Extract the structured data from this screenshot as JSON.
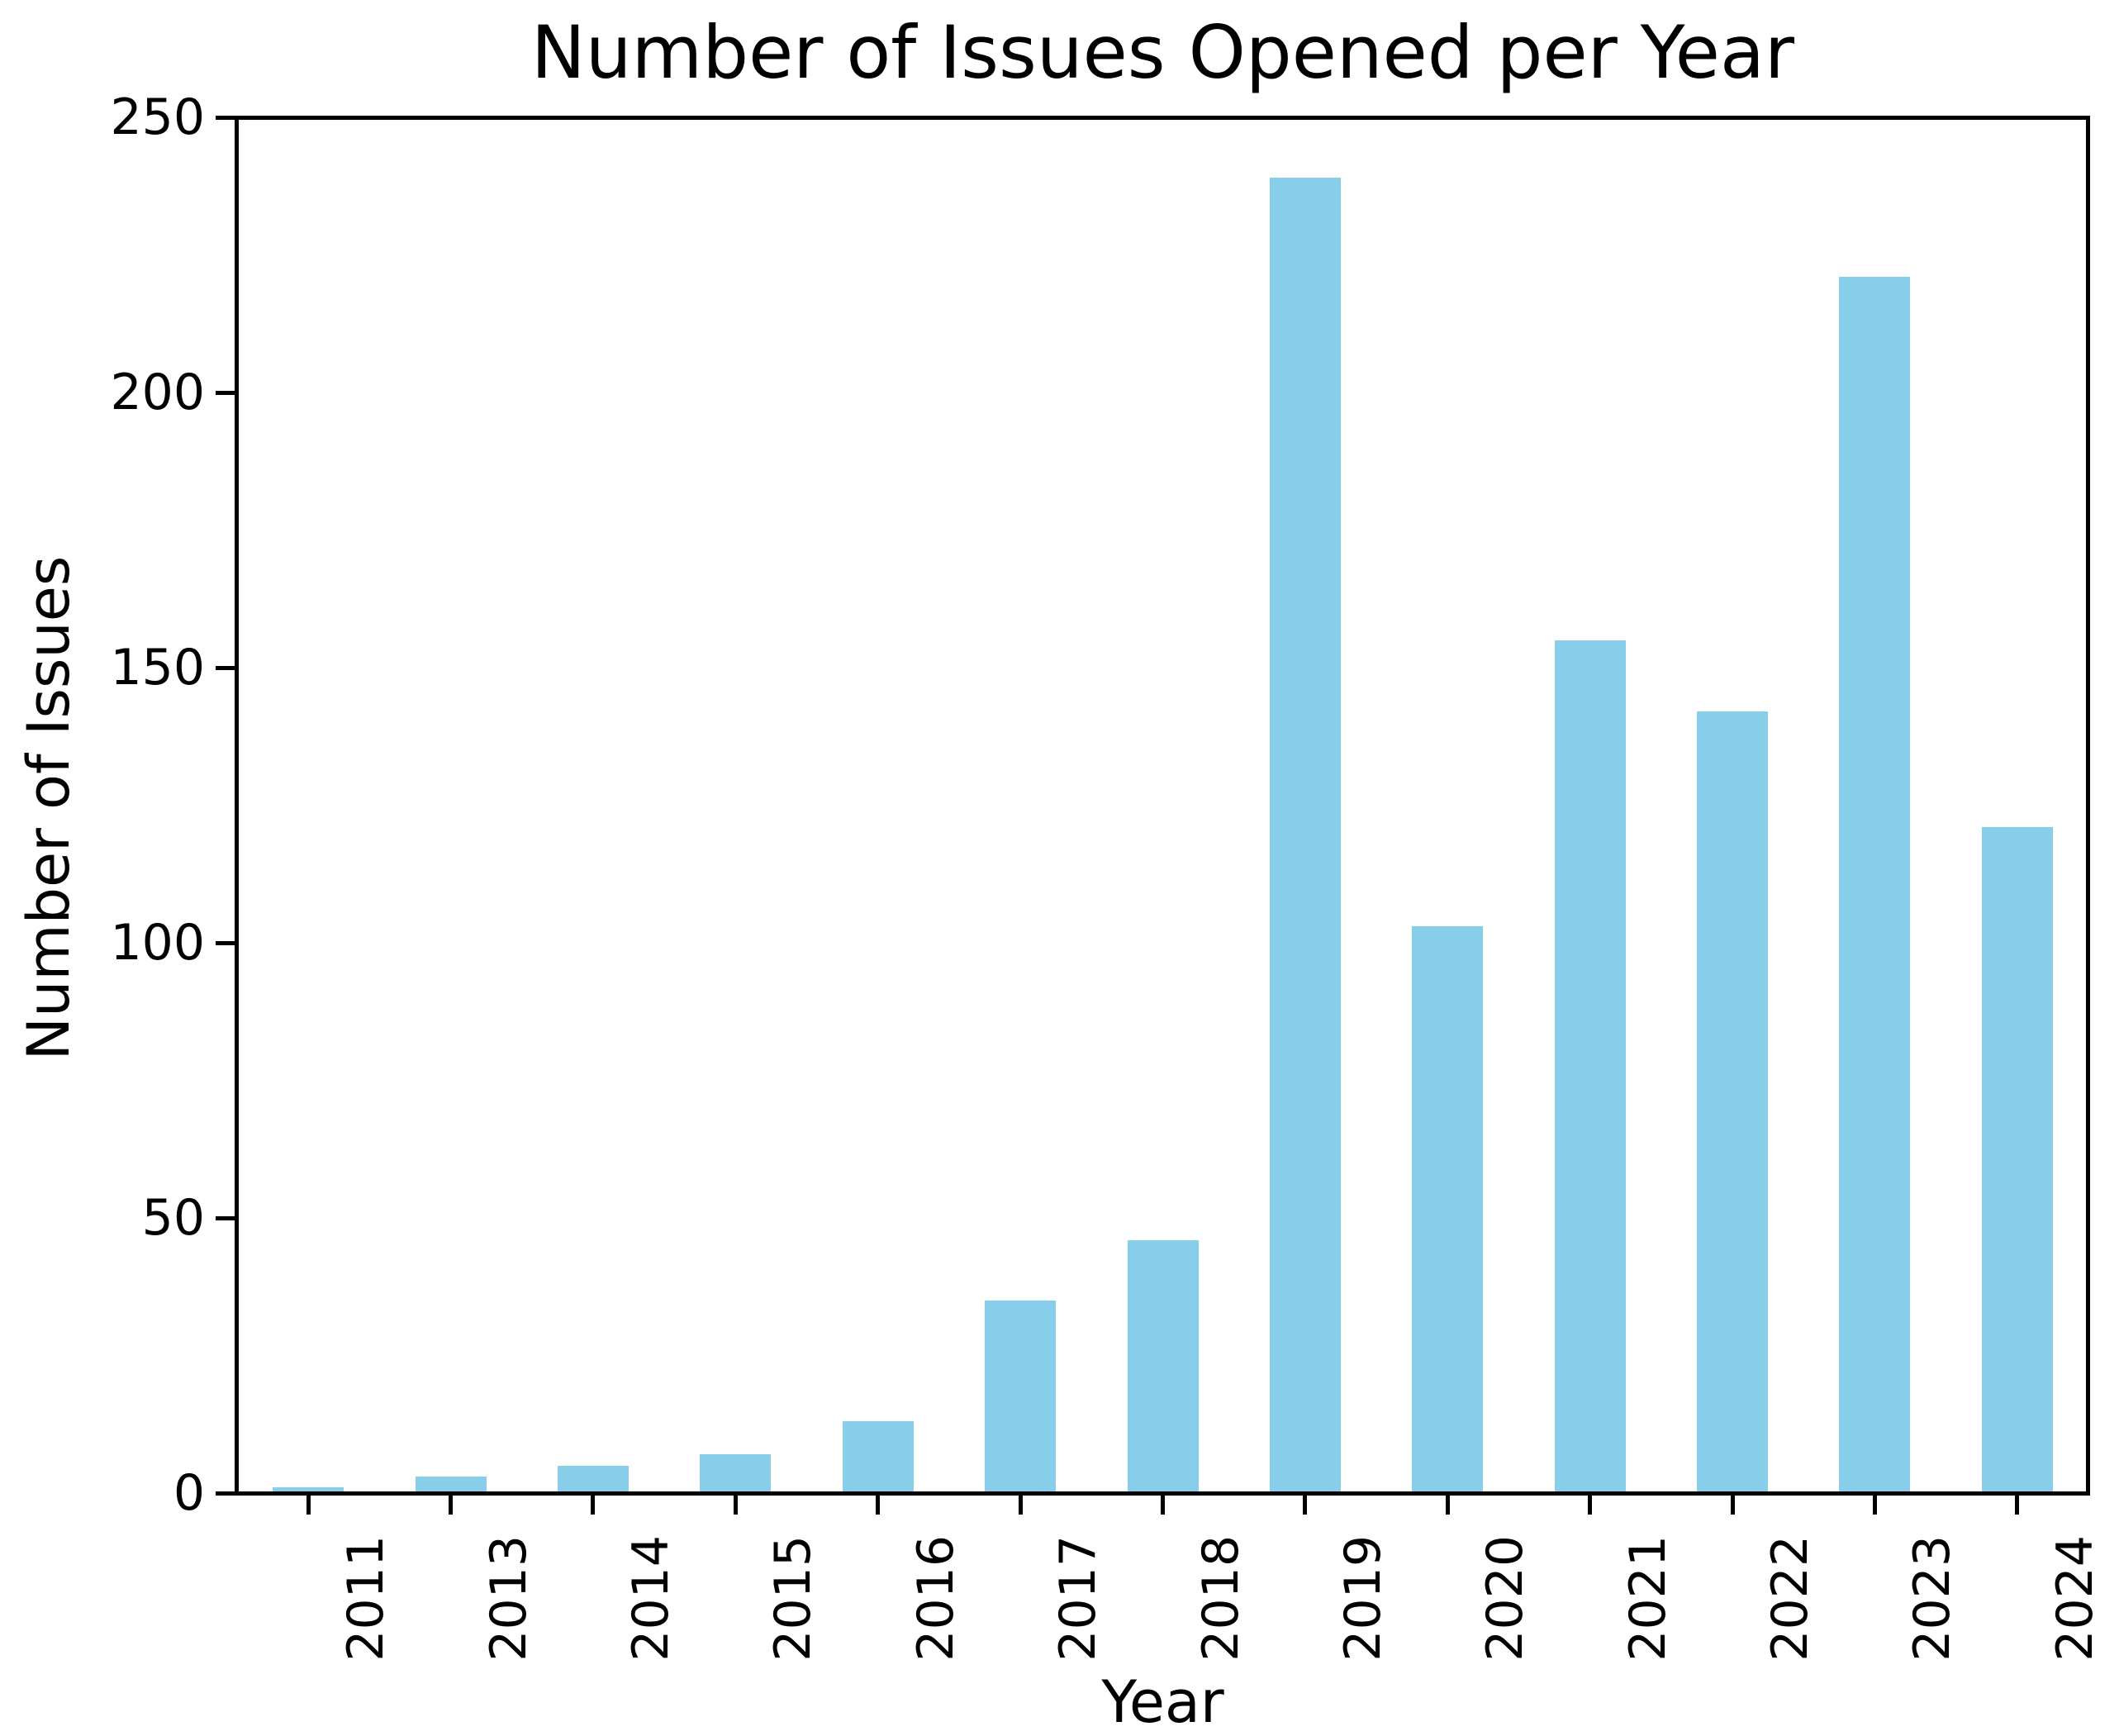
{
  "chart_data": {
    "type": "bar",
    "title": "Number of Issues Opened per Year",
    "xlabel": "Year",
    "ylabel": "Number of Issues",
    "categories": [
      "2011",
      "2013",
      "2014",
      "2015",
      "2016",
      "2017",
      "2018",
      "2019",
      "2020",
      "2021",
      "2022",
      "2023",
      "2024"
    ],
    "values": [
      1,
      3,
      5,
      7,
      13,
      35,
      46,
      239,
      103,
      155,
      142,
      221,
      121
    ],
    "yticks": [
      0,
      50,
      100,
      150,
      200,
      250
    ],
    "ylim": [
      0,
      250
    ],
    "bar_color": "#87CEEB",
    "axis_color": "#000000",
    "grid": false,
    "legend": "none",
    "x_tick_rotation": 90
  }
}
